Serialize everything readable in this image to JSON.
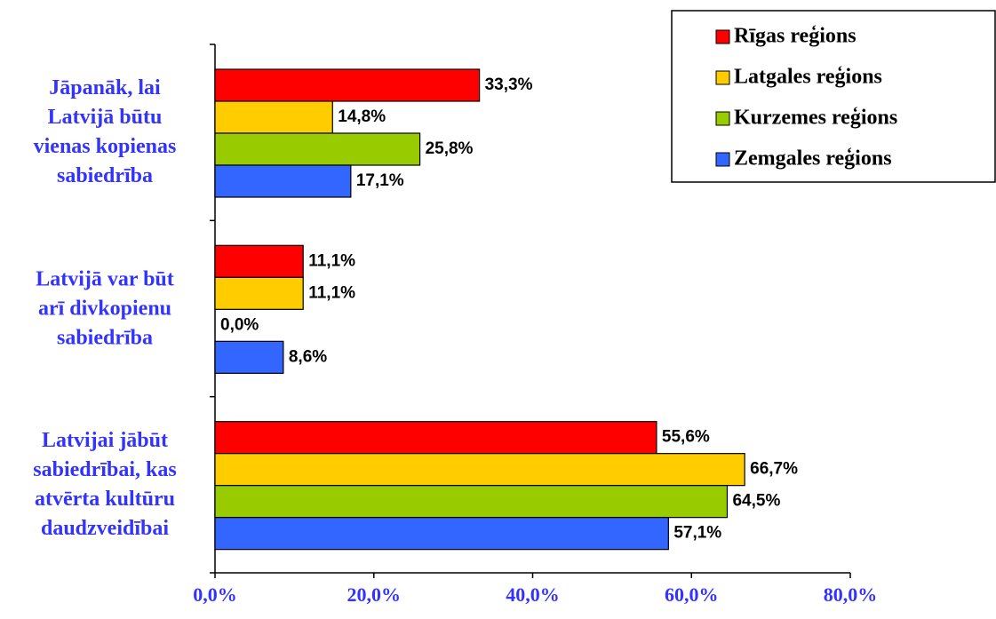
{
  "chart_data": {
    "type": "bar",
    "orientation": "horizontal",
    "categories": [
      "Jāpanāk, lai\nLatvijā būtu\nvienas kopienas\nsabiedrība",
      "Latvijā var būt\narī divkopienu\nsabiedrība",
      "Latvijai jābūt\nsabiedrībai, kas\natvērta kultūru\ndaudzveidībai"
    ],
    "series": [
      {
        "name": "Rīgas reģions",
        "color": "#ff0000",
        "values": [
          33.3,
          11.1,
          55.6
        ],
        "value_labels": [
          "33,3%",
          "11,1%",
          "55,6%"
        ]
      },
      {
        "name": "Latgales reģions",
        "color": "#ffcc00",
        "values": [
          14.8,
          11.1,
          66.7
        ],
        "value_labels": [
          "14,8%",
          "11,1%",
          "66,7%"
        ]
      },
      {
        "name": "Kurzemes reģions",
        "color": "#99cc00",
        "values": [
          25.8,
          0.0,
          64.5
        ],
        "value_labels": [
          "25,8%",
          "0,0%",
          "64,5%"
        ]
      },
      {
        "name": "Zemgales reģions",
        "color": "#3366ff",
        "values": [
          17.1,
          8.6,
          57.1
        ],
        "value_labels": [
          "17,1%",
          "8,6%",
          "57,1%"
        ]
      }
    ],
    "xlim": [
      0,
      80
    ],
    "xticks": [
      {
        "value": 0,
        "label": "0,0%"
      },
      {
        "value": 20,
        "label": "20,0%"
      },
      {
        "value": 40,
        "label": "40,0%"
      },
      {
        "value": 60,
        "label": "60,0%"
      },
      {
        "value": 80,
        "label": "80,0%"
      }
    ],
    "legend": "top-right"
  }
}
